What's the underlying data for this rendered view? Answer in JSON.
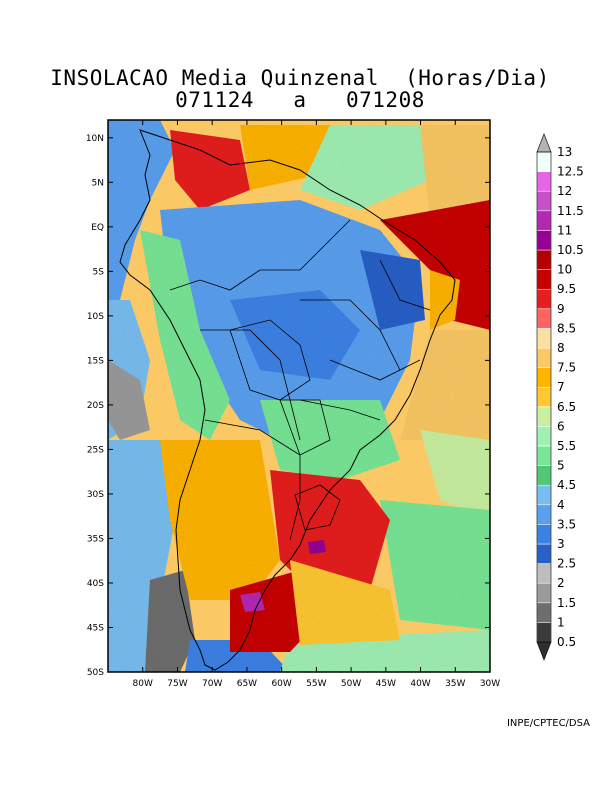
{
  "title": {
    "line1": "INSOLACAO Media Quinzenal  (Horas/Dia)",
    "line2": "071124   a   071208"
  },
  "credit": "INPE/CPTEC/DSA",
  "axes": {
    "lat_labels": [
      "10N",
      "5N",
      "EQ",
      "5S",
      "10S",
      "15S",
      "20S",
      "25S",
      "30S",
      "35S",
      "40S",
      "45S",
      "50S"
    ],
    "lat_values": [
      10,
      5,
      0,
      -5,
      -10,
      -15,
      -20,
      -25,
      -30,
      -35,
      -40,
      -45,
      -50
    ],
    "lon_labels": [
      "80W",
      "75W",
      "70W",
      "65W",
      "60W",
      "55W",
      "50W",
      "45W",
      "40W",
      "35W",
      "30W"
    ],
    "lon_values": [
      -80,
      -75,
      -70,
      -65,
      -60,
      -55,
      -50,
      -45,
      -40,
      -35,
      -30
    ],
    "lon_range": [
      -85,
      -30
    ],
    "lat_range": [
      -50,
      12
    ]
  },
  "colorbar": {
    "labels": [
      "0.5",
      "1",
      "1.5",
      "2",
      "2.5",
      "3",
      "3.5",
      "4",
      "4.5",
      "5",
      "5.5",
      "6",
      "6.5",
      "7",
      "7.5",
      "8",
      "8.5",
      "9",
      "9.5",
      "10",
      "10.5",
      "11",
      "11.5",
      "12",
      "12.5",
      "13"
    ],
    "colors": [
      "#3c3c3c",
      "#6e6e6e",
      "#9a9a9a",
      "#bebebe",
      "#2860c8",
      "#3c82e6",
      "#5aa0f0",
      "#78bef0",
      "#50c878",
      "#78e696",
      "#a0f0b4",
      "#c8f0a0",
      "#ffc832",
      "#ffb400",
      "#fac864",
      "#fae0a0",
      "#ff6464",
      "#e61e1e",
      "#c80000",
      "#b40000",
      "#960096",
      "#b428b4",
      "#c850c8",
      "#e664e6",
      "#f0fff8",
      "#b4b4b4"
    ]
  }
}
